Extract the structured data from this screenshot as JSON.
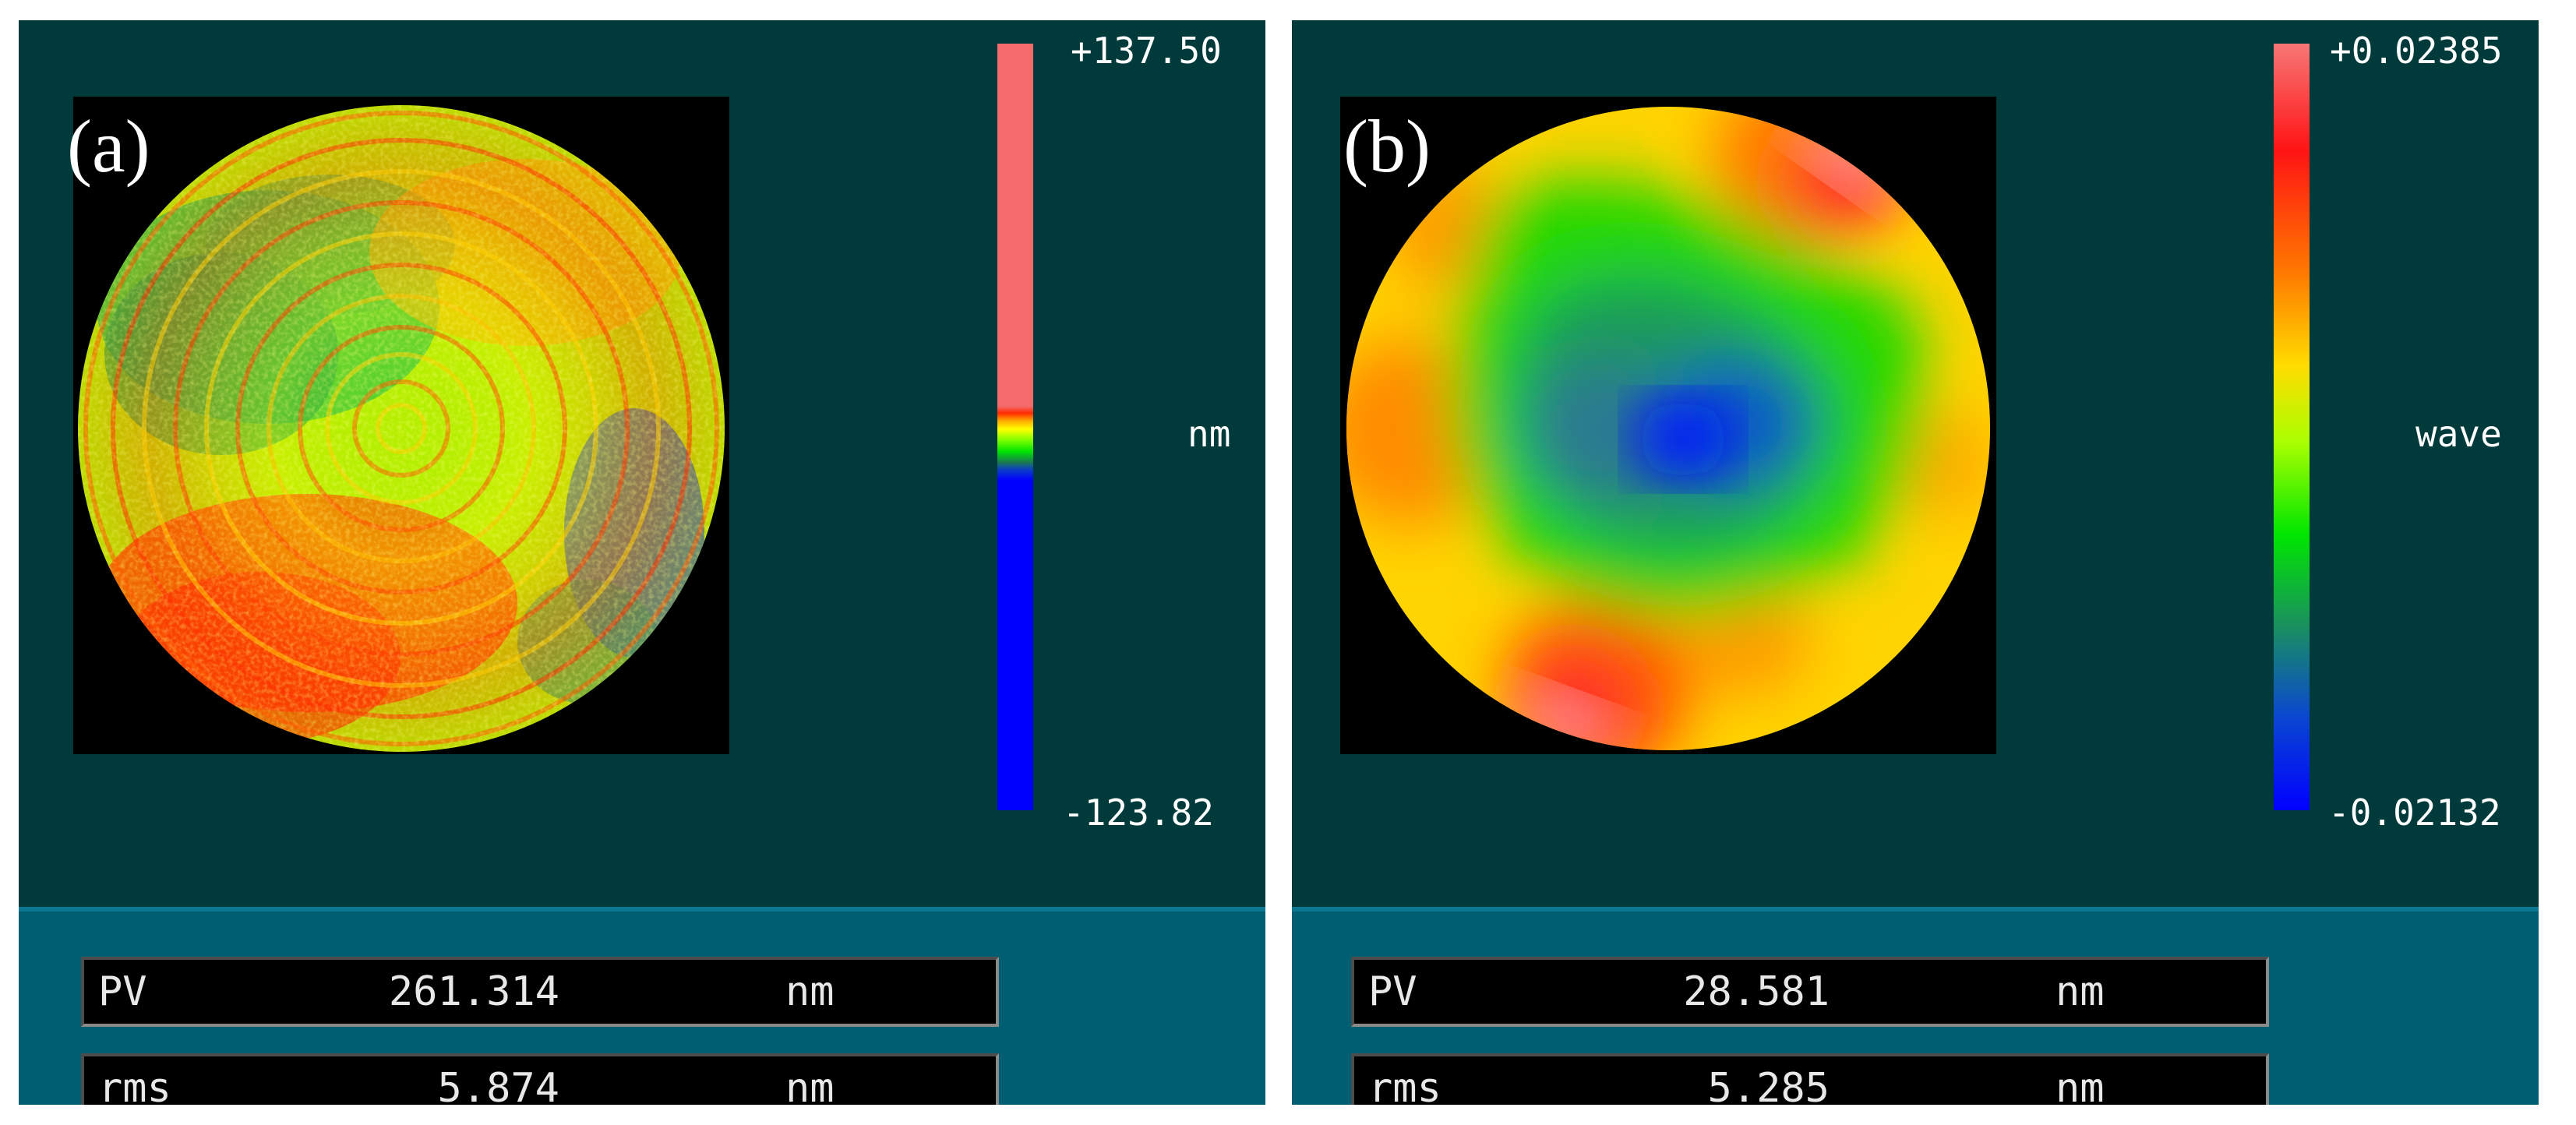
{
  "panels": [
    {
      "label": "(a)",
      "scale": {
        "max": "+137.50",
        "min": "-123.82",
        "unit": "nm"
      },
      "readouts": {
        "pv": {
          "label": "PV",
          "value": "261.314",
          "unit": "nm"
        },
        "rms": {
          "label": "rms",
          "value": "5.874",
          "unit": "nm"
        }
      }
    },
    {
      "label": "(b)",
      "scale": {
        "max": "+0.02385",
        "min": "-0.02132",
        "unit": "wave"
      },
      "readouts": {
        "pv": {
          "label": "PV",
          "value": "28.581",
          "unit": "nm"
        },
        "rms": {
          "label": "rms",
          "value": "5.285",
          "unit": "nm"
        }
      }
    }
  ],
  "colors": {
    "panel_bg": "#003a3a",
    "readout_bar": "#005e73",
    "map_bg": "#000000"
  }
}
